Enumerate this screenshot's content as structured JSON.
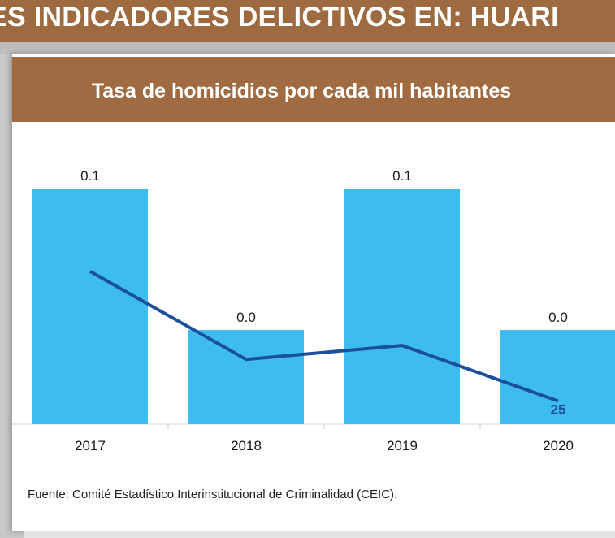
{
  "banner": {
    "text": "ES INDICADORES DELICTIVOS EN:  HUARI"
  },
  "panel": {
    "title": "Tasa de homicidios por cada mil habitantes",
    "source": "Fuente: Comité Estadístico Interinstitucional de Criminalidad (CEIC)."
  },
  "chart_data": {
    "type": "bar",
    "title": "Tasa de homicidios por cada mil habitantes",
    "categories": [
      "2017",
      "2018",
      "2019",
      "2020"
    ],
    "series": [
      {
        "type": "bar",
        "values": [
          0.1,
          0.04,
          0.1,
          0.04
        ],
        "value_labels": [
          "0.1",
          "0.0",
          "0.1",
          "0.0"
        ],
        "color": "#3dbcef"
      },
      {
        "type": "line",
        "values": [
          165,
          70,
          85,
          25
        ],
        "point_labels": [
          "",
          "",
          "",
          "25"
        ],
        "color": "#1c4f9c"
      }
    ],
    "ylim_bars": [
      0,
      0.118
    ],
    "ylim_line": [
      0,
      300
    ],
    "grid": false,
    "legend": "none"
  }
}
